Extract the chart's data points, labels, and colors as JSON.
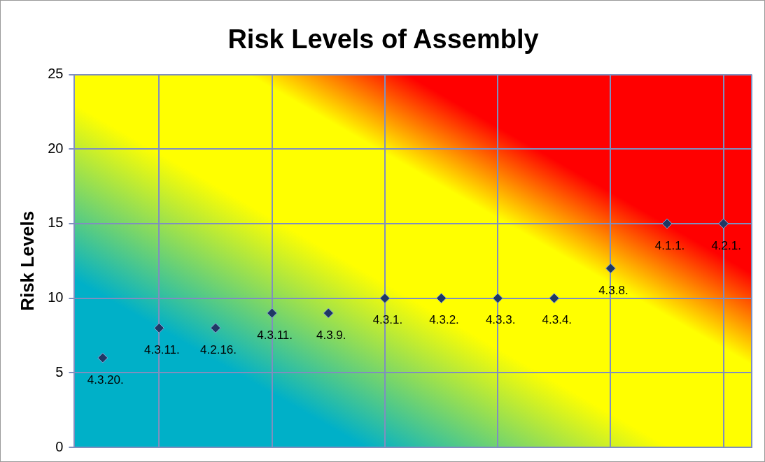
{
  "chart_data": {
    "type": "scatter",
    "title": "Risk Levels of Assembly",
    "ylabel": "Risk Levels",
    "categories": [
      null,
      null,
      null,
      null,
      null,
      null,
      null,
      null,
      null,
      null,
      null,
      null
    ],
    "series": [
      {
        "color": "#1f3864",
        "values": [
          6,
          8,
          8,
          9,
          9,
          10,
          10,
          10,
          10,
          12,
          15,
          15
        ],
        "value_labels": [
          "4.3.20.",
          "4.3.11.",
          "4.2.16.",
          "4.3.11.",
          "4.3.9.",
          "4.3.1.",
          "4.3.2.",
          "4.3.3.",
          "4.3.4.",
          "4.3.8.",
          "4.1.1.",
          "4.2.1."
        ]
      }
    ],
    "ylim": [
      0,
      25
    ],
    "yticks": [
      0,
      5,
      10,
      15,
      20,
      25
    ],
    "tick_labels": "y",
    "grid": true,
    "legend": false,
    "marker": "diamond"
  }
}
